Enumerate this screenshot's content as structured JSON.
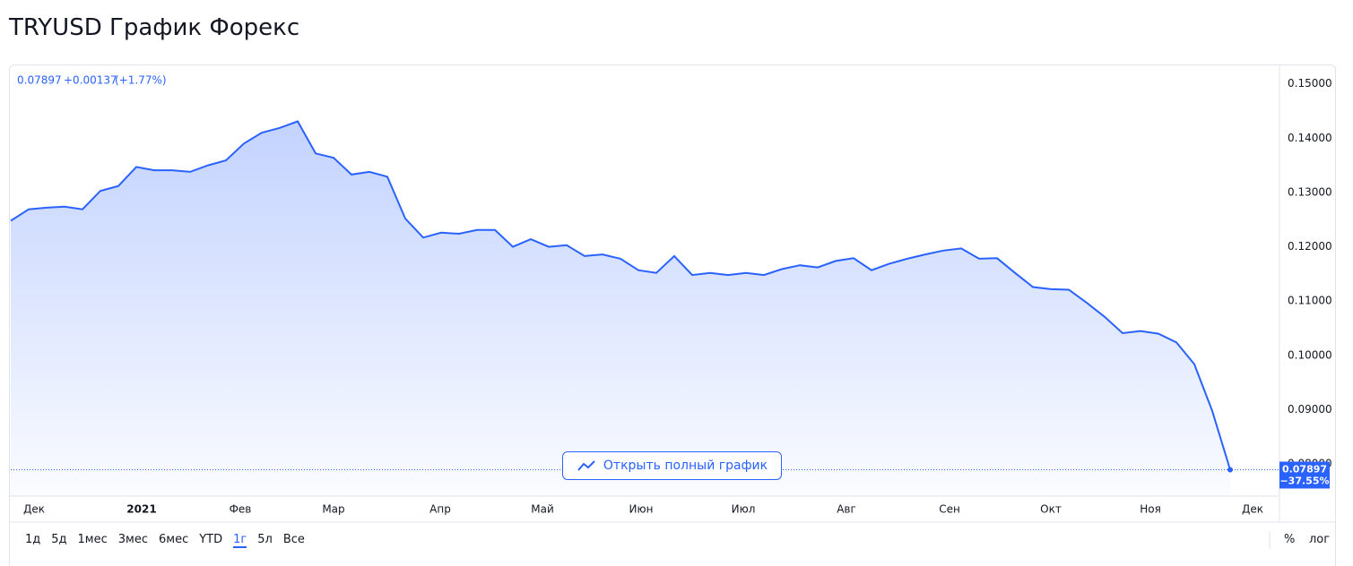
{
  "page_title": "TRYUSD График Форекс",
  "open_button": "Открыть полный график",
  "ranges": [
    "1д",
    "5д",
    "1мес",
    "3мес",
    "6мес",
    "YTD",
    "1г",
    "5л",
    "Все"
  ],
  "active_range": 6,
  "toggles": [
    "%",
    "лог"
  ],
  "chart_data": {
    "type": "area",
    "color": "#2962ff",
    "header": {
      "price": "0.07897",
      "change": "+0.00137",
      "change_pct": "(+1.77%)"
    },
    "last_price": "0.07897",
    "total_change": "−37.55%",
    "values": [
      0.1248,
      0.1269,
      0.1272,
      0.1274,
      0.1269,
      0.1303,
      0.1312,
      0.1347,
      0.1341,
      0.1341,
      0.1338,
      0.135,
      0.1359,
      0.139,
      0.141,
      0.1419,
      0.1431,
      0.1372,
      0.1364,
      0.1333,
      0.1338,
      0.1329,
      0.1252,
      0.1217,
      0.1226,
      0.1224,
      0.1231,
      0.1231,
      0.12,
      0.1214,
      0.12,
      0.1203,
      0.1183,
      0.1186,
      0.1178,
      0.1157,
      0.1152,
      0.1183,
      0.1148,
      0.1152,
      0.1148,
      0.1152,
      0.1148,
      0.1159,
      0.1166,
      0.1162,
      0.1174,
      0.1179,
      0.1157,
      0.1169,
      0.1178,
      0.1186,
      0.1193,
      0.1197,
      0.1178,
      0.1179,
      0.1152,
      0.1126,
      0.1122,
      0.1121,
      0.1097,
      0.1071,
      0.1041,
      0.1045,
      0.104,
      0.1024,
      0.0984,
      0.0898,
      0.07897
    ],
    "xlim": [
      0,
      70.75
    ],
    "xticks": [
      {
        "value": 1.3,
        "label": "Дек"
      },
      {
        "value": 7.3,
        "label": "2021"
      },
      {
        "value": 12.8,
        "label": "Фев"
      },
      {
        "value": 18.0,
        "label": "Мар"
      },
      {
        "value": 23.95,
        "label": "Апр"
      },
      {
        "value": 29.65,
        "label": "Май"
      },
      {
        "value": 35.15,
        "label": "Июн"
      },
      {
        "value": 40.85,
        "label": "Июл"
      },
      {
        "value": 46.6,
        "label": "Авг"
      },
      {
        "value": 52.35,
        "label": "Сен"
      },
      {
        "value": 58.0,
        "label": "Окт"
      },
      {
        "value": 63.55,
        "label": "Ноя"
      },
      {
        "value": 69.25,
        "label": "Дек"
      }
    ],
    "ylim": [
      0.0741,
      0.1534
    ],
    "yticks": [
      {
        "value": 0.08,
        "label": "0.08000"
      },
      {
        "value": 0.09,
        "label": "0.09000"
      },
      {
        "value": 0.1,
        "label": "0.10000"
      },
      {
        "value": 0.11,
        "label": "0.11000"
      },
      {
        "value": 0.12,
        "label": "0.12000"
      },
      {
        "value": 0.13,
        "label": "0.13000"
      },
      {
        "value": 0.14,
        "label": "0.14000"
      },
      {
        "value": 0.15,
        "label": "0.15000"
      }
    ],
    "grid": false
  }
}
